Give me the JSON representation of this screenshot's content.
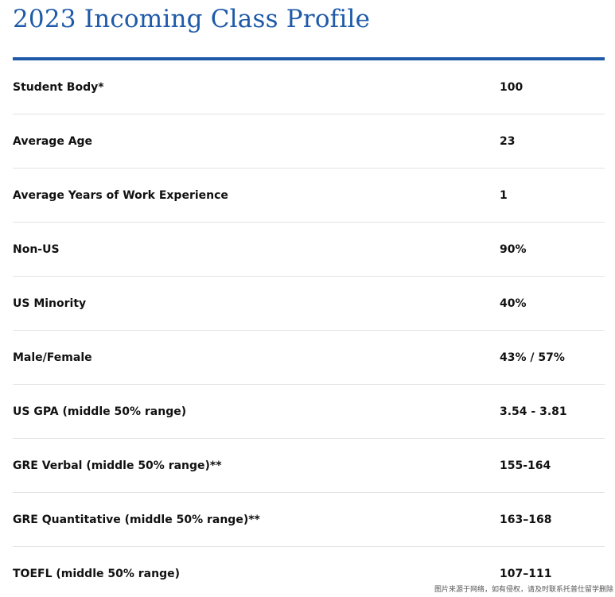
{
  "page": {
    "title": "2023 Incoming Class Profile",
    "accent_color": "#1f5aa8",
    "watermark": "图片来源于网络，如有侵权，请及时联系托普仕留学删除"
  },
  "profile": {
    "rows": [
      {
        "label": "Student Body*",
        "value": "100"
      },
      {
        "label": "Average Age",
        "value": "23"
      },
      {
        "label": "Average Years of Work Experience",
        "value": "1"
      },
      {
        "label": "Non-US",
        "value": "90%"
      },
      {
        "label": "US Minority",
        "value": "40%"
      },
      {
        "label": "Male/Female",
        "value": "43% / 57%"
      },
      {
        "label": "US GPA (middle 50% range)",
        "value": "3.54 - 3.81"
      },
      {
        "label": "GRE Verbal (middle 50% range)**",
        "value": "155-164"
      },
      {
        "label": "GRE Quantitative (middle 50% range)**",
        "value": "163–168"
      },
      {
        "label": "TOEFL (middle 50% range)",
        "value": "107–111"
      }
    ]
  }
}
